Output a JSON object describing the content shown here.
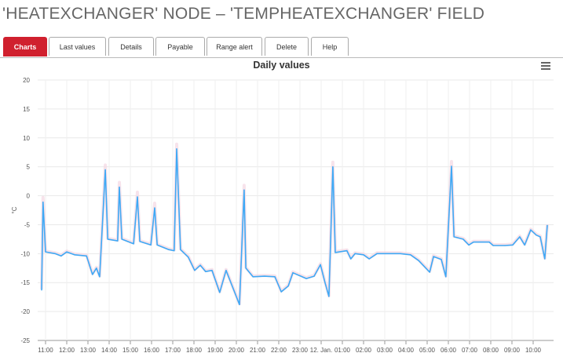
{
  "page": {
    "title": "'HEATEXCHANGER' NODE – 'TEMPHEATEXCHANGER' FIELD"
  },
  "tabs": [
    {
      "label": "Charts",
      "active": true
    },
    {
      "label": "Last values"
    },
    {
      "label": "Details"
    },
    {
      "label": "Payable"
    },
    {
      "label": "Range alert"
    },
    {
      "label": "Delete"
    },
    {
      "label": "Help"
    }
  ],
  "chart": {
    "menu_icon": "hamburger-menu-icon"
  },
  "chart_data": {
    "type": "line",
    "title": "Daily values",
    "ylabel": "°C",
    "xlabel": "",
    "ylim": [
      -25,
      20
    ],
    "yticks": [
      20,
      15,
      10,
      5,
      0,
      -5,
      -10,
      -15,
      -20,
      -25
    ],
    "xlim": [
      "11 Jan 10:35",
      "12 Jan 11:00"
    ],
    "xticks": [
      "11:00",
      "12:00",
      "13:00",
      "14:00",
      "15:00",
      "16:00",
      "17:00",
      "18:00",
      "19:00",
      "20:00",
      "21:00",
      "22:00",
      "23:00",
      "12. Jan.",
      "01:00",
      "02:00",
      "03:00",
      "04:00",
      "05:00",
      "06:00",
      "07:00",
      "08:00",
      "09:00",
      "10:00"
    ],
    "grid": true,
    "line_color": "#3fa9f5",
    "range_color": "#f4d7e3",
    "series": [
      {
        "points": [
          [
            "11 Jan 10:49",
            -16.3
          ],
          [
            "11 Jan 10:53",
            -1.1
          ],
          [
            "11 Jan 11:00",
            -9.7
          ],
          [
            "11 Jan 11:27",
            -10.0
          ],
          [
            "11 Jan 11:44",
            -10.4
          ],
          [
            "11 Jan 12:00",
            -9.7
          ],
          [
            "11 Jan 12:22",
            -10.2
          ],
          [
            "11 Jan 12:56",
            -10.4
          ],
          [
            "11 Jan 13:13",
            -13.6
          ],
          [
            "11 Jan 13:24",
            -12.5
          ],
          [
            "11 Jan 13:33",
            -14.0
          ],
          [
            "11 Jan 13:49",
            4.5
          ],
          [
            "11 Jan 13:56",
            -7.5
          ],
          [
            "11 Jan 14:24",
            -7.8
          ],
          [
            "11 Jan 14:29",
            1.5
          ],
          [
            "11 Jan 14:36",
            -7.5
          ],
          [
            "11 Jan 15:09",
            -8.3
          ],
          [
            "11 Jan 15:20",
            -0.2
          ],
          [
            "11 Jan 15:27",
            -7.9
          ],
          [
            "11 Jan 15:58",
            -8.5
          ],
          [
            "11 Jan 16:09",
            -2.1
          ],
          [
            "11 Jan 16:16",
            -8.5
          ],
          [
            "11 Jan 16:49",
            -9.3
          ],
          [
            "11 Jan 17:04",
            -9.5
          ],
          [
            "11 Jan 17:11",
            8.1
          ],
          [
            "11 Jan 17:22",
            -9.3
          ],
          [
            "11 Jan 17:44",
            -10.6
          ],
          [
            "11 Jan 18:02",
            -12.9
          ],
          [
            "11 Jan 18:18",
            -12.0
          ],
          [
            "11 Jan 18:33",
            -13.1
          ],
          [
            "11 Jan 18:51",
            -12.9
          ],
          [
            "11 Jan 19:13",
            -16.7
          ],
          [
            "11 Jan 19:31",
            -12.9
          ],
          [
            "11 Jan 20:09",
            -18.8
          ],
          [
            "11 Jan 20:22",
            1.0
          ],
          [
            "11 Jan 20:27",
            -12.5
          ],
          [
            "11 Jan 20:47",
            -14.0
          ],
          [
            "11 Jan 21:20",
            -13.9
          ],
          [
            "11 Jan 21:49",
            -14.0
          ],
          [
            "11 Jan 22:07",
            -16.6
          ],
          [
            "11 Jan 22:27",
            -15.6
          ],
          [
            "11 Jan 22:40",
            -13.3
          ],
          [
            "11 Jan 23:18",
            -14.3
          ],
          [
            "11 Jan 23:40",
            -13.9
          ],
          [
            "11 Jan 23:58",
            -11.9
          ],
          [
            "12 Jan 00:11",
            -15.0
          ],
          [
            "12 Jan 00:22",
            -17.4
          ],
          [
            "12 Jan 00:33",
            5.0
          ],
          [
            "12 Jan 00:40",
            -9.8
          ],
          [
            "12 Jan 01:13",
            -9.5
          ],
          [
            "12 Jan 01:24",
            -10.9
          ],
          [
            "12 Jan 01:36",
            -10.0
          ],
          [
            "12 Jan 02:00",
            -10.2
          ],
          [
            "12 Jan 02:16",
            -10.9
          ],
          [
            "12 Jan 02:38",
            -10.0
          ],
          [
            "12 Jan 03:07",
            -10.0
          ],
          [
            "12 Jan 03:44",
            -10.0
          ],
          [
            "12 Jan 04:13",
            -10.2
          ],
          [
            "12 Jan 04:36",
            -11.2
          ],
          [
            "12 Jan 05:07",
            -13.2
          ],
          [
            "12 Jan 05:18",
            -10.5
          ],
          [
            "12 Jan 05:40",
            -11.0
          ],
          [
            "12 Jan 05:53",
            -14.0
          ],
          [
            "12 Jan 06:09",
            5.1
          ],
          [
            "12 Jan 06:16",
            -7.1
          ],
          [
            "12 Jan 06:42",
            -7.5
          ],
          [
            "12 Jan 06:58",
            -8.5
          ],
          [
            "12 Jan 07:11",
            -8.0
          ],
          [
            "12 Jan 07:56",
            -8.0
          ],
          [
            "12 Jan 08:07",
            -8.6
          ],
          [
            "12 Jan 08:40",
            -8.6
          ],
          [
            "12 Jan 09:02",
            -8.5
          ],
          [
            "12 Jan 09:22",
            -7.1
          ],
          [
            "12 Jan 09:36",
            -8.5
          ],
          [
            "12 Jan 09:53",
            -5.9
          ],
          [
            "12 Jan 10:09",
            -6.8
          ],
          [
            "12 Jan 10:20",
            -7.1
          ],
          [
            "12 Jan 10:33",
            -10.9
          ],
          [
            "12 Jan 10:40",
            -5.1
          ]
        ]
      }
    ]
  }
}
